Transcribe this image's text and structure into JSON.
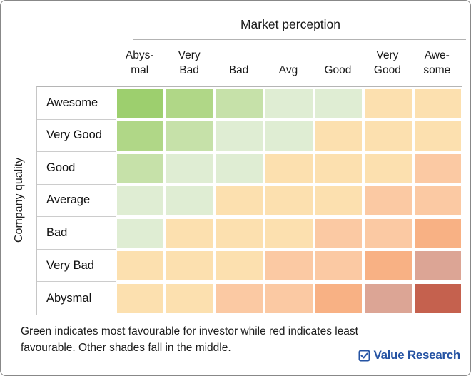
{
  "chart_data": {
    "type": "heatmap",
    "title": "Market perception",
    "x_axis_label": "Market perception",
    "y_axis_label": "Company quality",
    "columns": [
      "Abysmal",
      "Very Bad",
      "Bad",
      "Avg",
      "Good",
      "Very Good",
      "Awesome"
    ],
    "column_label_lines": [
      [
        "Abys-",
        "mal"
      ],
      [
        "Very",
        "Bad"
      ],
      [
        "Bad"
      ],
      [
        "Avg"
      ],
      [
        "Good"
      ],
      [
        "Very",
        "Good"
      ],
      [
        "Awe-",
        "some"
      ]
    ],
    "rows": [
      "Awesome",
      "Very Good",
      "Good",
      "Average",
      "Bad",
      "Very Bad",
      "Abysmal"
    ],
    "palette": {
      "strong_green": "#9dcf6e",
      "green": "#b0d787",
      "light_green": "#c6e1a9",
      "pale_green": "#dfedd3",
      "light_orange": "#fce0af",
      "salmon": "#fbc9a3",
      "dark_orange": "#f8b184",
      "muted_brown_pink": "#dca595",
      "red": "#c5614e"
    },
    "cells": [
      [
        "#9dcf6e",
        "#b0d787",
        "#c6e1a9",
        "#dfedd3",
        "#dfedd3",
        "#fce0af",
        "#fce0af"
      ],
      [
        "#b0d787",
        "#c6e1a9",
        "#dfedd3",
        "#dfedd3",
        "#fce0af",
        "#fce0af",
        "#fce0af"
      ],
      [
        "#c6e1a9",
        "#dfedd3",
        "#dfedd3",
        "#fce0af",
        "#fce0af",
        "#fce0af",
        "#fbc9a3"
      ],
      [
        "#dfedd3",
        "#dfedd3",
        "#fce0af",
        "#fce0af",
        "#fce0af",
        "#fbc9a3",
        "#fbc9a3"
      ],
      [
        "#dfedd3",
        "#fce0af",
        "#fce0af",
        "#fce0af",
        "#fbc9a3",
        "#fbc9a3",
        "#f8b184"
      ],
      [
        "#fce0af",
        "#fce0af",
        "#fce0af",
        "#fbc9a3",
        "#fbc9a3",
        "#f8b184",
        "#dca595"
      ],
      [
        "#fce0af",
        "#fce0af",
        "#fbc9a3",
        "#fbc9a3",
        "#f8b184",
        "#dca595",
        "#c5614e"
      ]
    ],
    "legend_note": "Green indicates most favourable for investor while red indicates least favourable. Other shades fall in the middle.",
    "legend_position": "bottom",
    "grid": "off"
  },
  "footer": {
    "note": "Green indicates most favourable for investor while red indicates least favourable. Other shades fall in the middle.",
    "logo_text": "Value Research",
    "logo_color": "#2553a3"
  }
}
